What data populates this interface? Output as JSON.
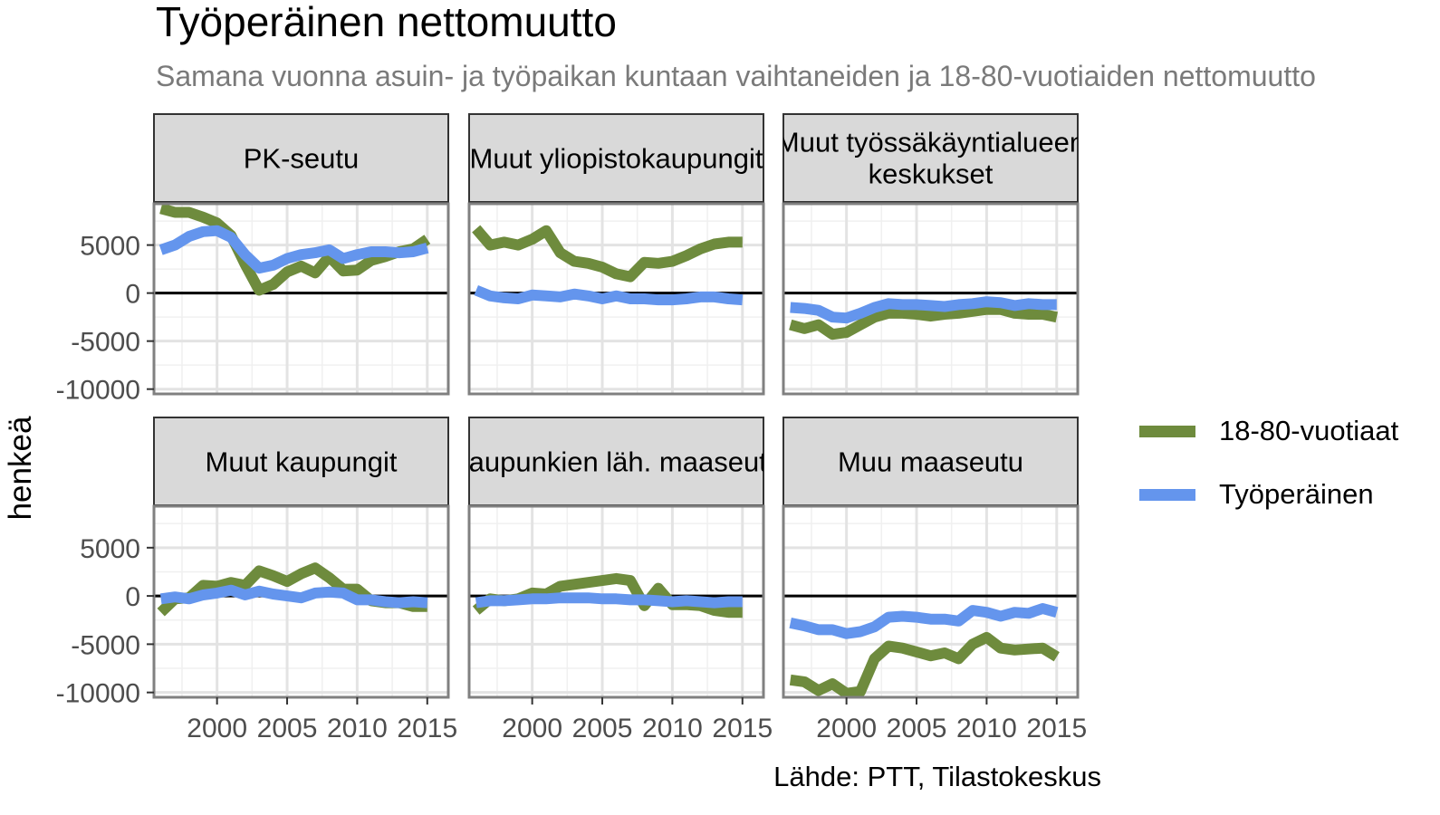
{
  "title": "Työperäinen nettomuutto",
  "subtitle": "Samana vuonna asuin- ja työpaikan kuntaan vaihtaneiden ja 18-80-vuotiaiden nettomuutto",
  "caption": "Lähde: PTT, Tilastokeskus",
  "chart_data": {
    "type": "line",
    "ylabel": "henkeä",
    "xlabel": "",
    "xlim": [
      1995.5,
      2016.5
    ],
    "ylim": [
      -10500,
      9300
    ],
    "x_ticks": [
      2000,
      2005,
      2010,
      2015
    ],
    "y_ticks": [
      5000,
      0,
      -5000,
      -10000
    ],
    "grid": true,
    "legend_position": "right",
    "series_colors": {
      "18-80-vuotiaat": "#6e8b3d",
      "Työperäinen": "#6495ed"
    },
    "series_names": [
      "18-80-vuotiaat",
      "Työperäinen"
    ],
    "x": [
      1996,
      1997,
      1998,
      1999,
      2000,
      2001,
      2002,
      2003,
      2004,
      2005,
      2006,
      2007,
      2008,
      2009,
      2010,
      2011,
      2012,
      2013,
      2014,
      2015
    ],
    "panels": [
      {
        "label": "PK-seutu",
        "series": [
          {
            "name": "18-80-vuotiaat",
            "values": [
              8800,
              8400,
              8400,
              7900,
              7300,
              6000,
              3000,
              300,
              900,
              2200,
              2800,
              2100,
              3800,
              2300,
              2400,
              3400,
              3800,
              4300,
              4600,
              5600
            ]
          },
          {
            "name": "Työperäinen",
            "values": [
              4500,
              5000,
              5900,
              6400,
              6500,
              5800,
              4000,
              2600,
              2900,
              3600,
              4000,
              4200,
              4500,
              3600,
              4000,
              4300,
              4300,
              4200,
              4300,
              4700
            ]
          }
        ]
      },
      {
        "label": "Muut yliopistokaupungit",
        "series": [
          {
            "name": "18-80-vuotiaat",
            "values": [
              6700,
              5000,
              5300,
              5000,
              5600,
              6500,
              4200,
              3300,
              3100,
              2700,
              2000,
              1700,
              3200,
              3100,
              3300,
              3900,
              4600,
              5100,
              5300,
              5300
            ]
          },
          {
            "name": "Työperäinen",
            "values": [
              300,
              -300,
              -500,
              -600,
              -200,
              -300,
              -400,
              -100,
              -300,
              -600,
              -300,
              -600,
              -600,
              -700,
              -700,
              -600,
              -400,
              -400,
              -600,
              -700
            ]
          }
        ]
      },
      {
        "label": "Muut työssäkäyntialueen keskukset",
        "series": [
          {
            "name": "18-80-vuotiaat",
            "values": [
              -3300,
              -3700,
              -3300,
              -4300,
              -4100,
              -3300,
              -2500,
              -2100,
              -2100,
              -2200,
              -2400,
              -2200,
              -2100,
              -1900,
              -1700,
              -1700,
              -2100,
              -2200,
              -2200,
              -2500
            ]
          },
          {
            "name": "Työperäinen",
            "values": [
              -1500,
              -1600,
              -1800,
              -2500,
              -2600,
              -2100,
              -1500,
              -1100,
              -1200,
              -1200,
              -1300,
              -1400,
              -1200,
              -1100,
              -900,
              -1000,
              -1300,
              -1100,
              -1200,
              -1200
            ]
          }
        ]
      },
      {
        "label": "Muut kaupungit",
        "series": [
          {
            "name": "18-80-vuotiaat",
            "values": [
              -1700,
              -300,
              -200,
              1100,
              1000,
              1400,
              1100,
              2600,
              2100,
              1500,
              2300,
              2900,
              1900,
              700,
              700,
              -500,
              -700,
              -700,
              -1100,
              -1100
            ]
          },
          {
            "name": "Työperäinen",
            "values": [
              -300,
              -100,
              -300,
              100,
              300,
              600,
              100,
              500,
              200,
              0,
              -200,
              300,
              400,
              300,
              -400,
              -400,
              -600,
              -700,
              -600,
              -700
            ]
          }
        ]
      },
      {
        "label": "Kaupunkien läh. maaseutu",
        "series": [
          {
            "name": "18-80-vuotiaat",
            "values": [
              -1500,
              -300,
              -500,
              -300,
              300,
              200,
              1000,
              1200,
              1400,
              1600,
              1800,
              1600,
              -1000,
              800,
              -900,
              -900,
              -1000,
              -1500,
              -1700,
              -1700
            ]
          },
          {
            "name": "Työperäinen",
            "values": [
              -700,
              -500,
              -500,
              -400,
              -300,
              -300,
              -200,
              -200,
              -200,
              -300,
              -300,
              -400,
              -400,
              -500,
              -600,
              -500,
              -600,
              -700,
              -600,
              -600
            ]
          }
        ]
      },
      {
        "label": "Muu maaseutu",
        "series": [
          {
            "name": "18-80-vuotiaat",
            "values": [
              -8700,
              -8900,
              -9800,
              -9100,
              -10100,
              -9900,
              -6500,
              -5200,
              -5400,
              -5800,
              -6200,
              -5900,
              -6500,
              -5000,
              -4300,
              -5400,
              -5600,
              -5500,
              -5400,
              -6300
            ]
          },
          {
            "name": "Työperäinen",
            "values": [
              -2800,
              -3100,
              -3500,
              -3500,
              -3900,
              -3700,
              -3200,
              -2200,
              -2100,
              -2200,
              -2400,
              -2400,
              -2600,
              -1500,
              -1700,
              -2100,
              -1700,
              -1800,
              -1300,
              -1700
            ]
          }
        ]
      }
    ]
  }
}
